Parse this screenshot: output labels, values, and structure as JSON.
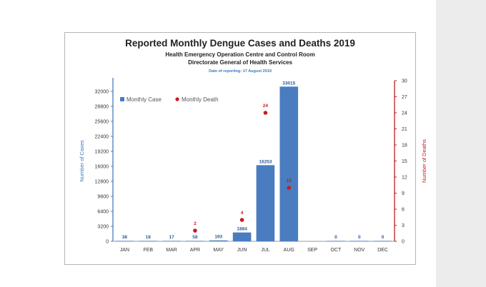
{
  "chart_data": {
    "type": "bar",
    "title": "Reported Monthly Dengue Cases and Deaths 2019",
    "subtitle_lines": [
      "Health Emergency Operation Centre and Control Room",
      "Directorate General of Health Services"
    ],
    "date_note": "Date of reporting: 17 August 2019",
    "categories": [
      "JAN",
      "FEB",
      "MAR",
      "APR",
      "MAY",
      "JUN",
      "JUL",
      "AUG",
      "SEP",
      "OCT",
      "NOV",
      "DEC"
    ],
    "series": [
      {
        "name": "Monthly Case",
        "type": "bar",
        "axis": "left",
        "color": "#4a7cc0",
        "values": [
          38,
          18,
          17,
          58,
          193,
          1884,
          16253,
          33015,
          null,
          0,
          0,
          0
        ],
        "labels": [
          "38",
          "18",
          "17",
          "58",
          "193",
          "1884",
          "16253",
          "33015",
          "",
          "0",
          "0",
          "0"
        ]
      },
      {
        "name": "Monthly Death",
        "type": "scatter",
        "axis": "right",
        "color": "#c21d1d",
        "values": [
          null,
          null,
          null,
          2,
          null,
          4,
          24,
          10,
          null,
          null,
          null,
          null
        ],
        "labels": [
          "",
          "",
          "",
          "2",
          "",
          "4",
          "24",
          "10",
          "",
          "",
          "",
          ""
        ]
      }
    ],
    "ylabel": "Number of Cases",
    "ylabel_right": "Number of Deaths",
    "ylim": [
      0,
      32000
    ],
    "yticks": [
      0,
      3200,
      6400,
      9600,
      12800,
      16000,
      19200,
      22400,
      25600,
      28800,
      32000
    ],
    "ylim_right": [
      0,
      30
    ],
    "yticks_right": [
      0,
      3,
      6,
      9,
      12,
      15,
      18,
      21,
      24,
      27,
      30
    ],
    "legend_position": "top-left",
    "grid": false
  }
}
